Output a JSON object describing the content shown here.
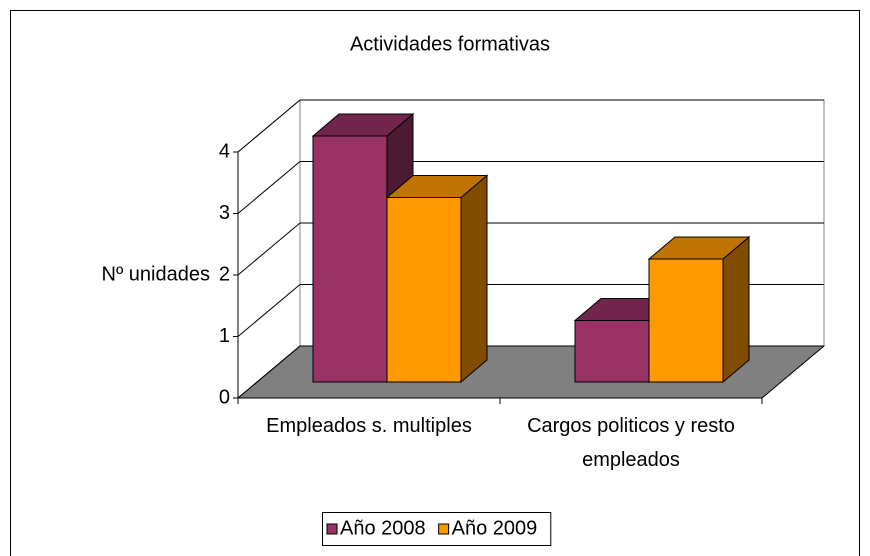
{
  "chart_data": {
    "type": "bar3d",
    "title": "Actividades formativas",
    "y_label": "Nº unidades",
    "categories": [
      "Empleados s. multiples",
      "Cargos politicos y resto empleados"
    ],
    "series": [
      {
        "name": "Año 2008",
        "color": "#993366",
        "values": [
          4,
          1
        ]
      },
      {
        "name": "Año 2009",
        "color": "#FF9900",
        "values": [
          3,
          2
        ]
      }
    ],
    "ylim": [
      0,
      4
    ],
    "yticks": [
      0,
      1,
      2,
      3,
      4
    ],
    "grid": true,
    "legend": "bottom"
  }
}
